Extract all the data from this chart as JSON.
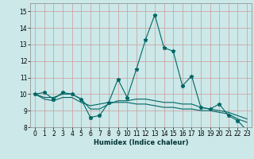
{
  "title": "",
  "xlabel": "Humidex (Indice chaleur)",
  "bg_color": "#cce8e8",
  "grid_color": "#cc9999",
  "line_color": "#006666",
  "xlim": [
    -0.5,
    23.5
  ],
  "ylim": [
    8,
    15.5
  ],
  "yticks": [
    8,
    9,
    10,
    11,
    12,
    13,
    14,
    15
  ],
  "xticks": [
    0,
    1,
    2,
    3,
    4,
    5,
    6,
    7,
    8,
    9,
    10,
    11,
    12,
    13,
    14,
    15,
    16,
    17,
    18,
    19,
    20,
    21,
    22,
    23
  ],
  "line1_x": [
    0,
    1,
    2,
    3,
    4,
    5,
    6,
    7,
    8,
    9,
    10,
    11,
    12,
    13,
    14,
    15,
    16,
    17,
    18,
    19,
    20,
    21,
    22,
    23
  ],
  "line1_y": [
    10.0,
    10.1,
    9.7,
    10.1,
    10.0,
    9.7,
    8.6,
    8.7,
    9.5,
    10.9,
    9.8,
    11.5,
    13.3,
    14.8,
    12.8,
    12.6,
    10.5,
    11.1,
    9.2,
    9.1,
    9.4,
    8.7,
    8.4,
    7.8
  ],
  "line2_x": [
    0,
    1,
    2,
    3,
    4,
    5,
    6,
    7,
    8,
    9,
    10,
    11,
    12,
    13,
    14,
    15,
    16,
    17,
    18,
    19,
    20,
    21,
    22,
    23
  ],
  "line2_y": [
    10.0,
    9.7,
    9.6,
    9.8,
    9.8,
    9.5,
    9.3,
    9.4,
    9.5,
    9.5,
    9.5,
    9.4,
    9.4,
    9.3,
    9.2,
    9.2,
    9.1,
    9.1,
    9.0,
    9.0,
    8.9,
    8.8,
    8.5,
    8.3
  ],
  "line3_x": [
    0,
    1,
    2,
    3,
    4,
    5,
    6,
    7,
    8,
    9,
    10,
    11,
    12,
    13,
    14,
    15,
    16,
    17,
    18,
    19,
    20,
    21,
    22,
    23
  ],
  "line3_y": [
    10.0,
    9.8,
    9.8,
    10.0,
    10.0,
    9.7,
    9.1,
    9.1,
    9.4,
    9.6,
    9.6,
    9.7,
    9.7,
    9.6,
    9.5,
    9.5,
    9.4,
    9.4,
    9.2,
    9.1,
    9.0,
    8.9,
    8.7,
    8.5
  ],
  "tick_fontsize": 5.5,
  "xlabel_fontsize": 6.0,
  "marker_size": 3.5
}
